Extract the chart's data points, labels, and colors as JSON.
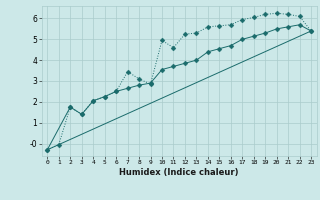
{
  "xlabel": "Humidex (Indice chaleur)",
  "bg_color": "#cce8e8",
  "grid_color": "#aacccc",
  "line_color": "#1a6b6b",
  "xlim": [
    -0.5,
    23.5
  ],
  "ylim": [
    -0.6,
    6.6
  ],
  "xticks": [
    0,
    1,
    2,
    3,
    4,
    5,
    6,
    7,
    8,
    9,
    10,
    11,
    12,
    13,
    14,
    15,
    16,
    17,
    18,
    19,
    20,
    21,
    22,
    23
  ],
  "yticks": [
    0,
    1,
    2,
    3,
    4,
    5,
    6
  ],
  "ytick_labels": [
    "-0",
    "1",
    "2",
    "3",
    "4",
    "5",
    "6"
  ],
  "line1_x": [
    0,
    1,
    2,
    3,
    4,
    5,
    6,
    7,
    8,
    9,
    10,
    11,
    12,
    13,
    14,
    15,
    16,
    17,
    18,
    19,
    20,
    21,
    22,
    23
  ],
  "line1_y": [
    -0.3,
    -0.05,
    1.75,
    1.4,
    2.05,
    2.25,
    2.5,
    3.45,
    3.1,
    2.85,
    4.95,
    4.6,
    5.25,
    5.3,
    5.6,
    5.65,
    5.7,
    5.95,
    6.05,
    6.2,
    6.25,
    6.2,
    6.1,
    5.4
  ],
  "line2_x": [
    0,
    2,
    3,
    4,
    5,
    6,
    7,
    8,
    9,
    10,
    11,
    12,
    13,
    14,
    15,
    16,
    17,
    18,
    19,
    20,
    21,
    22,
    23
  ],
  "line2_y": [
    -0.3,
    1.75,
    1.4,
    2.05,
    2.25,
    2.5,
    2.65,
    2.8,
    2.9,
    3.55,
    3.7,
    3.85,
    4.0,
    4.4,
    4.55,
    4.7,
    5.0,
    5.15,
    5.3,
    5.5,
    5.6,
    5.7,
    5.4
  ],
  "line3_x": [
    0,
    23
  ],
  "line3_y": [
    -0.3,
    5.4
  ],
  "markersize": 2.5
}
